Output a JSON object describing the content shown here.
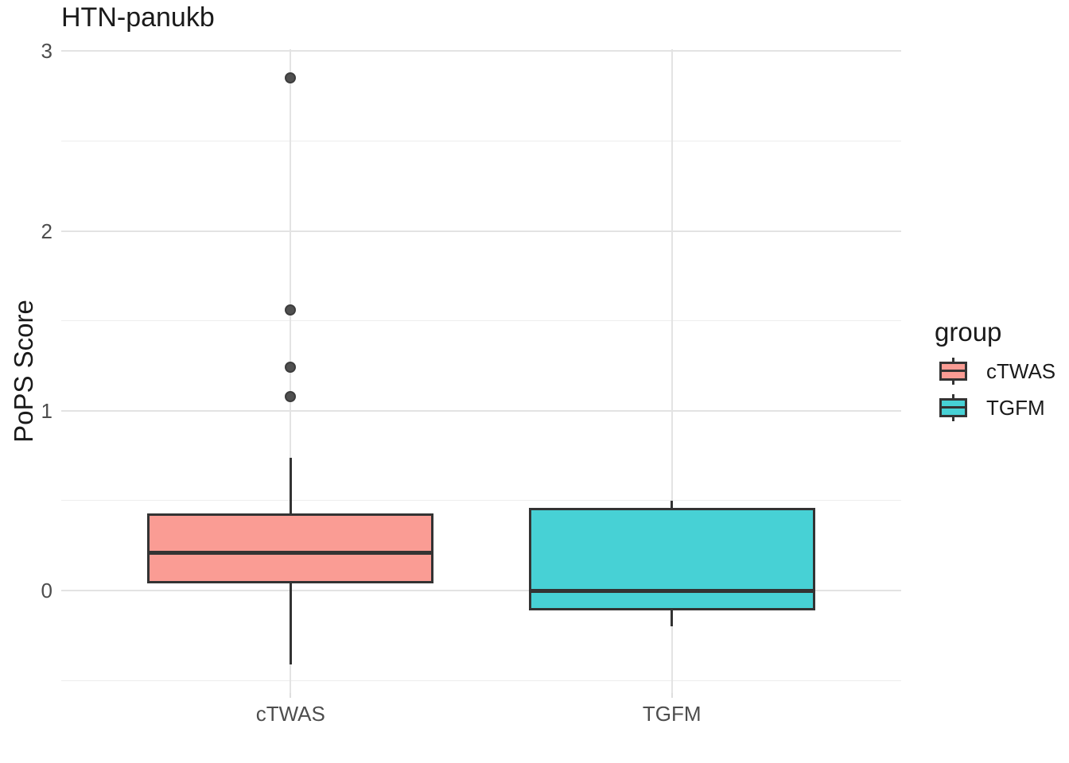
{
  "chart_data": {
    "type": "boxplot",
    "title": "HTN-panukb",
    "xlabel": "",
    "ylabel": "PoPS Score",
    "categories": [
      "cTWAS",
      "TGFM"
    ],
    "ylim": [
      -0.57,
      3.01
    ],
    "y_major_ticks": [
      0,
      1,
      2,
      3
    ],
    "y_minor_ticks": [
      -0.5,
      0.5,
      1.5,
      2.5
    ],
    "grid": "horizontal major+minor lines, vertical major line at each category",
    "legend": {
      "title": "group",
      "position": "right",
      "entries": [
        "cTWAS",
        "TGFM"
      ]
    },
    "series": [
      {
        "name": "cTWAS",
        "fill": "#FA9C94",
        "stroke": "#333333",
        "x_frac": 0.273,
        "stats": {
          "whisker_low": -0.41,
          "q1": 0.04,
          "median": 0.21,
          "q3": 0.43,
          "whisker_high": 0.74
        },
        "outliers": [
          1.08,
          1.24,
          1.56,
          2.85
        ]
      },
      {
        "name": "TGFM",
        "fill": "#47D1D5",
        "stroke": "#333333",
        "x_frac": 0.727,
        "stats": {
          "whisker_low": -0.2,
          "q1": -0.11,
          "median": 0.0,
          "q3": 0.46,
          "whisker_high": 0.5
        },
        "outliers": []
      }
    ],
    "box_width_frac": 0.341
  },
  "colors": {
    "background": "#FFFFFF",
    "ctwas_fill": "#FA9C94",
    "tgfm_fill": "#47D1D5",
    "box_stroke": "#333333",
    "outlier_fill": "#505050",
    "outlier_stroke": "#3D3D3D",
    "grid_major": "#E3E3E3",
    "grid_minor": "#EDEDED",
    "text_dark": "#1A1A1A",
    "text_gray": "#4D4D4D"
  }
}
